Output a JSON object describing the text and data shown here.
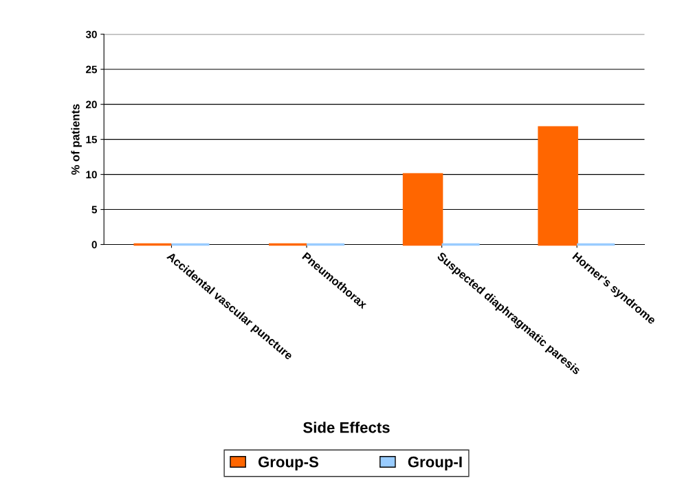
{
  "chart_data": {
    "type": "bar",
    "xlabel": "Side Effects",
    "ylabel": "% of patients",
    "categories": [
      "Accidental vascular puncture",
      "Pneumothorax",
      "Suspected diaphragmatic paresis",
      "Horner's syndrome"
    ],
    "series": [
      {
        "name": "Group-S",
        "color": "#ff6600",
        "values": [
          0,
          0,
          10,
          16.7
        ]
      },
      {
        "name": "Group-I",
        "color": "#99ccff",
        "values": [
          0,
          0,
          0,
          0
        ]
      }
    ],
    "ylim": [
      0,
      30
    ],
    "yticks": [
      0,
      5,
      10,
      15,
      20,
      25,
      30
    ],
    "grid": "y",
    "legend": "bottom"
  }
}
